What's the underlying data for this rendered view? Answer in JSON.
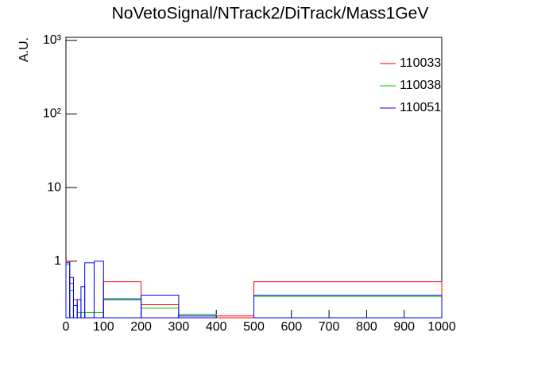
{
  "chart_data": {
    "type": "histogram",
    "title": "NoVetoSignal/NTrack2/DiTrack/Mass1GeV",
    "y_label": "A.U.",
    "bins": [
      0,
      10,
      20,
      30,
      40,
      50,
      75,
      100,
      200,
      300,
      400,
      500,
      1000
    ],
    "series": [
      {
        "name": "110033",
        "color": "#ff0000",
        "values": [
          1,
          0.5,
          0.3,
          0.2,
          0.2,
          0.2,
          0.2,
          0.525,
          0.256,
          0.18,
          0.18,
          0.525
        ]
      },
      {
        "name": "110038",
        "color": "#00cc00",
        "values": [
          0.9,
          0.4,
          0.25,
          0.2,
          0.2,
          0.2,
          0.2,
          0.31,
          0.23,
          0.19,
          0.17,
          0.33
        ]
      },
      {
        "name": "110051",
        "color": "#0000ff",
        "values": [
          0.95,
          0.6,
          0.25,
          0.3,
          0.45,
          0.95,
          1,
          0.3,
          0.345,
          0.18,
          0.17,
          0.345
        ]
      }
    ],
    "xlim": [
      0,
      1000
    ],
    "xticks": [
      0,
      100,
      200,
      300,
      400,
      500,
      600,
      700,
      800,
      900,
      1000
    ],
    "ylim": [
      0.17,
      1100
    ],
    "log_y": true,
    "yticks": [
      1,
      10,
      {
        "value": 100,
        "label": "10²"
      },
      {
        "value": 1000,
        "label": "10³"
      }
    ],
    "legend": "upper right"
  }
}
